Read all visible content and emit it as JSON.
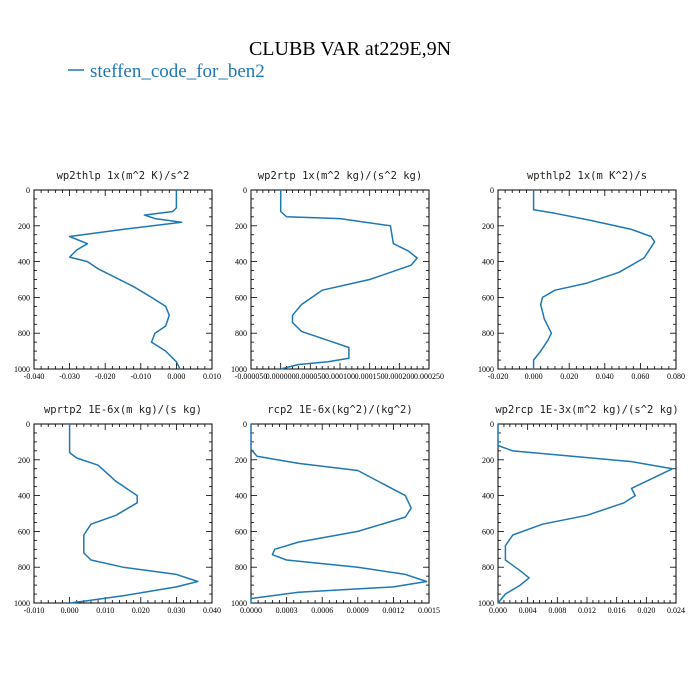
{
  "figure": {
    "title": "CLUBB VAR at229E,9N",
    "legend": {
      "label": "steffen_code_for_ben2",
      "color": "#1f77b4"
    }
  },
  "chart_data": [
    {
      "type": "line",
      "title": "wp2thlp   1x(m^2 K)/s^2",
      "xlim": [
        -0.04,
        0.01
      ],
      "ylim": [
        1000,
        0
      ],
      "xticks": [
        -0.04,
        -0.03,
        -0.02,
        -0.01,
        0.0,
        0.01
      ],
      "xtick_labels": [
        "-0.040",
        "-0.030",
        "-0.020",
        "-0.010",
        "0.000",
        "0.010"
      ],
      "yticks": [
        0,
        200,
        400,
        600,
        800,
        1000
      ],
      "ytick_labels": [
        "0",
        "200",
        "400",
        "600",
        "800",
        "1000"
      ],
      "series": [
        {
          "x": [
            0,
            0,
            -0.001,
            -0.009,
            -0.006,
            0.0015,
            -0.015,
            -0.03,
            -0.025,
            -0.028,
            -0.03,
            -0.025,
            -0.022,
            -0.012,
            -0.007,
            -0.003,
            -0.002,
            -0.003,
            -0.006,
            -0.007,
            -0.003,
            0.0,
            0.001
          ],
          "y": [
            0,
            100,
            120,
            140,
            160,
            180,
            220,
            260,
            300,
            335,
            375,
            400,
            440,
            540,
            600,
            650,
            700,
            760,
            800,
            850,
            900,
            960,
            1000
          ]
        }
      ]
    },
    {
      "type": "line",
      "title": "wp2rtp   1x(m^2 kg)/(s^2 kg)",
      "xlim": [
        -5e-05,
        0.00025
      ],
      "ylim": [
        1000,
        0
      ],
      "xticks": [
        -5e-05,
        0.0,
        5e-05,
        0.0001,
        0.00015,
        0.0002,
        0.00025
      ],
      "xtick_labels": [
        "-0.000050",
        "0.000000",
        "0.000050",
        "0.000100",
        "0.000150",
        "0.000200",
        "0.000250"
      ],
      "yticks": [
        0,
        200,
        400,
        600,
        800,
        1000
      ],
      "ytick_labels": [
        "0",
        "200",
        "400",
        "600",
        "800",
        "1000"
      ],
      "series": [
        {
          "x": [
            0.0,
            0.0,
            1e-05,
            0.0001,
            0.000185,
            0.00019,
            0.000215,
            0.00023,
            0.00022,
            0.00015,
            7e-05,
            3.5e-05,
            2e-05,
            2e-05,
            3.5e-05,
            8e-05,
            0.000115,
            0.000115,
            0.000115,
            0.000115,
            8e-05,
            3e-05,
            0.0
          ],
          "y": [
            0,
            120,
            150,
            160,
            200,
            300,
            340,
            380,
            420,
            500,
            560,
            640,
            700,
            740,
            790,
            840,
            880,
            890,
            900,
            940,
            960,
            975,
            1000
          ]
        }
      ]
    },
    {
      "type": "line",
      "title": "wpthlp2   1x(m K^2)/s",
      "xlim": [
        -0.02,
        0.08
      ],
      "ylim": [
        1000,
        0
      ],
      "xticks": [
        -0.02,
        0.0,
        0.02,
        0.04,
        0.06,
        0.08
      ],
      "xtick_labels": [
        "-0.020",
        "0.000",
        "0.020",
        "0.040",
        "0.060",
        "0.080"
      ],
      "yticks": [
        0,
        200,
        400,
        600,
        800,
        1000
      ],
      "ytick_labels": [
        "0",
        "200",
        "400",
        "600",
        "800",
        "1000"
      ],
      "series": [
        {
          "x": [
            0.0,
            0.0,
            0.012,
            0.032,
            0.055,
            0.066,
            0.068,
            0.062,
            0.048,
            0.03,
            0.012,
            0.005,
            0.004,
            0.006,
            0.01,
            0.008,
            0.004,
            0.0,
            0.0
          ],
          "y": [
            0,
            110,
            130,
            170,
            220,
            260,
            290,
            380,
            460,
            520,
            560,
            600,
            640,
            720,
            800,
            840,
            900,
            950,
            1000
          ]
        }
      ]
    },
    {
      "type": "line",
      "title": "wprtp2   1E-6x(m kg)/(s kg)",
      "xlim": [
        -0.01,
        0.04
      ],
      "ylim": [
        1000,
        0
      ],
      "xticks": [
        -0.01,
        0.0,
        0.01,
        0.02,
        0.03,
        0.04
      ],
      "xtick_labels": [
        "-0.010",
        "0.000",
        "0.010",
        "0.020",
        "0.030",
        "0.040"
      ],
      "yticks": [
        0,
        200,
        400,
        600,
        800,
        1000
      ],
      "ytick_labels": [
        "0",
        "200",
        "400",
        "600",
        "800",
        "1000"
      ],
      "series": [
        {
          "x": [
            0.0,
            0.0,
            0.002,
            0.008,
            0.013,
            0.019,
            0.019,
            0.013,
            0.006,
            0.004,
            0.004,
            0.006,
            0.015,
            0.03,
            0.036,
            0.03,
            0.015,
            0.004,
            0.0
          ],
          "y": [
            0,
            160,
            190,
            230,
            320,
            400,
            440,
            510,
            560,
            620,
            720,
            760,
            800,
            840,
            880,
            910,
            960,
            990,
            1000
          ]
        }
      ]
    },
    {
      "type": "line",
      "title": "rcp2   1E-6x(kg^2)/(kg^2)",
      "xlim": [
        0.0,
        0.0015
      ],
      "ylim": [
        1000,
        0
      ],
      "xticks": [
        0.0,
        0.0003,
        0.0006,
        0.0009,
        0.0012,
        0.0015
      ],
      "xtick_labels": [
        "0.0000",
        "0.0003",
        "0.0006",
        "0.0009",
        "0.0012",
        "0.0015"
      ],
      "yticks": [
        0,
        200,
        400,
        600,
        800,
        1000
      ],
      "ytick_labels": [
        "0",
        "200",
        "400",
        "600",
        "800",
        "1000"
      ],
      "series": [
        {
          "x": [
            0.0,
            0.0,
            5e-05,
            0.0004,
            0.0009,
            0.0013,
            0.00135,
            0.0013,
            0.0009,
            0.0004,
            0.0002,
            0.00018,
            0.0003,
            0.0009,
            0.0013,
            0.00148,
            0.0012,
            0.0004,
            0.0,
            0.0
          ],
          "y": [
            0,
            140,
            180,
            220,
            260,
            400,
            470,
            520,
            600,
            660,
            700,
            730,
            760,
            800,
            840,
            880,
            910,
            940,
            975,
            1000
          ]
        }
      ]
    },
    {
      "type": "line",
      "title": "wp2rcp   1E-3x(m^2 kg)/(s^2 kg)",
      "xlim": [
        0.0,
        0.024
      ],
      "ylim": [
        1000,
        0
      ],
      "xticks": [
        0.0,
        0.004,
        0.008,
        0.012,
        0.016,
        0.02,
        0.024
      ],
      "xtick_labels": [
        "0.000",
        "0.004",
        "0.008",
        "0.012",
        "0.016",
        "0.020",
        "0.024"
      ],
      "yticks": [
        0,
        200,
        400,
        600,
        800,
        1000
      ],
      "ytick_labels": [
        "0",
        "200",
        "400",
        "600",
        "800",
        "1000"
      ],
      "series": [
        {
          "x": [
            0.0,
            0.0,
            0.002,
            0.01,
            0.018,
            0.0235,
            0.02,
            0.018,
            0.0185,
            0.017,
            0.012,
            0.006,
            0.002,
            0.001,
            0.001,
            0.003,
            0.0042,
            0.003,
            0.001,
            0.0
          ],
          "y": [
            0,
            120,
            150,
            180,
            210,
            250,
            320,
            360,
            400,
            440,
            510,
            560,
            620,
            680,
            760,
            820,
            860,
            900,
            950,
            1000
          ]
        }
      ]
    }
  ]
}
